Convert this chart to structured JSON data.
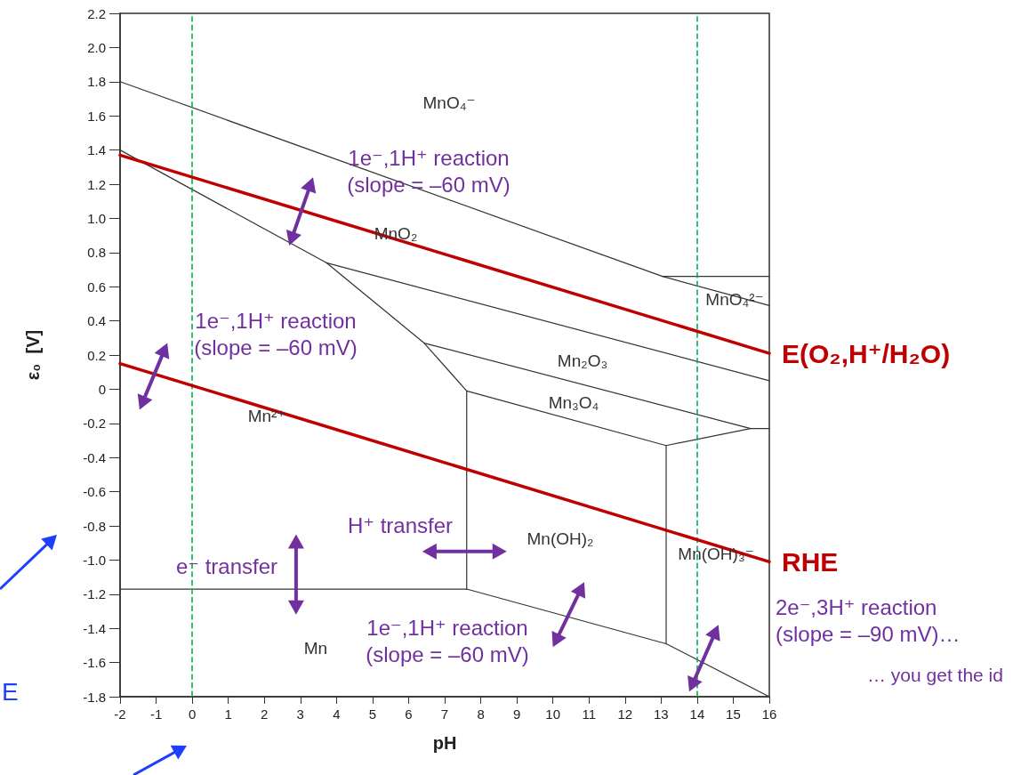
{
  "chart_data": {
    "type": "line",
    "xlabel": "pH",
    "ylabel": "ε₀  [V]",
    "xlim": [
      -2,
      16
    ],
    "xticks": [
      -2,
      -1,
      0,
      1,
      2,
      3,
      4,
      5,
      6,
      7,
      8,
      9,
      10,
      11,
      12,
      13,
      14,
      15,
      16
    ],
    "ylim": [
      -1.8,
      2.2
    ],
    "yticks": [
      2.2,
      {
        "value": 2,
        "label": "2.0"
      },
      1.8,
      1.6,
      1.4,
      1.2,
      {
        "value": 1,
        "label": "1.0"
      },
      0.8,
      0.6,
      0.4,
      0.2,
      0,
      -0.2,
      -0.4,
      -0.6,
      -0.8,
      {
        "value": -1,
        "label": "-1.0"
      },
      -1.2,
      -1.4,
      -1.6,
      -1.8
    ],
    "grid": false,
    "legend": false,
    "marker": "none",
    "line_style": "solid",
    "series": [
      {
        "color": "#333333",
        "x": [
          -2,
          13.04,
          16
        ],
        "values": [
          1.8,
          0.66,
          0.49
        ]
      },
      {
        "color": "#333333",
        "x": [
          13.04,
          16
        ],
        "values": [
          0.66,
          0.66
        ]
      },
      {
        "color": "#333333",
        "x": [
          -2,
          3.72,
          6.43,
          7.61,
          7.61
        ],
        "values": [
          1.4,
          0.74,
          0.27,
          -0.01,
          -1.17
        ]
      },
      {
        "color": "#333333",
        "x": [
          3.72,
          16
        ],
        "values": [
          0.74,
          0.05
        ]
      },
      {
        "color": "#333333",
        "x": [
          6.43,
          15.48
        ],
        "values": [
          0.27,
          -0.23
        ]
      },
      {
        "color": "#333333",
        "x": [
          7.61,
          13.14,
          15.48,
          16
        ],
        "values": [
          -0.01,
          -0.33,
          -0.23,
          -0.23
        ]
      },
      {
        "color": "#333333",
        "x": [
          -2,
          7.61,
          13.14,
          16
        ],
        "values": [
          -1.17,
          -1.17,
          -1.49,
          -1.8
        ]
      },
      {
        "color": "#333333",
        "x": [
          13.14,
          13.14
        ],
        "values": [
          -0.33,
          -1.49
        ]
      },
      {
        "name": "E(O₂,H⁺/H₂O)",
        "color": "#c00000",
        "x": [
          -2,
          16
        ],
        "values": [
          1.37,
          0.21
        ]
      },
      {
        "name": "RHE",
        "color": "#c00000",
        "x": [
          -2,
          16
        ],
        "values": [
          0.15,
          -1.01
        ]
      }
    ],
    "ref_lines": [
      {
        "axis": "x",
        "value": 0,
        "color": "#00b050",
        "line_style": "dashed"
      },
      {
        "axis": "x",
        "value": 14,
        "color": "#00b050",
        "line_style": "dashed"
      }
    ],
    "annotations": [
      "MnO₄⁻",
      "MnO₂",
      "MnO₄²⁻",
      "Mn₂O₃",
      "Mn₃O₄",
      "Mn²⁺",
      "Mn(OH)₂",
      "Mn(OH)₃⁻",
      "Mn",
      "1e⁻,1H⁺ reaction\n(slope = –60 mV)",
      "1e⁻,1H⁺ reaction\n(slope = –60 mV)",
      "H⁺ transfer",
      "e⁻ transfer",
      "1e⁻,1H⁺ reaction\n(slope = –60 mV)",
      "2e⁻,3H⁺ reaction\n(slope = –90 mV)…",
      "… you get the id",
      "E"
    ]
  }
}
